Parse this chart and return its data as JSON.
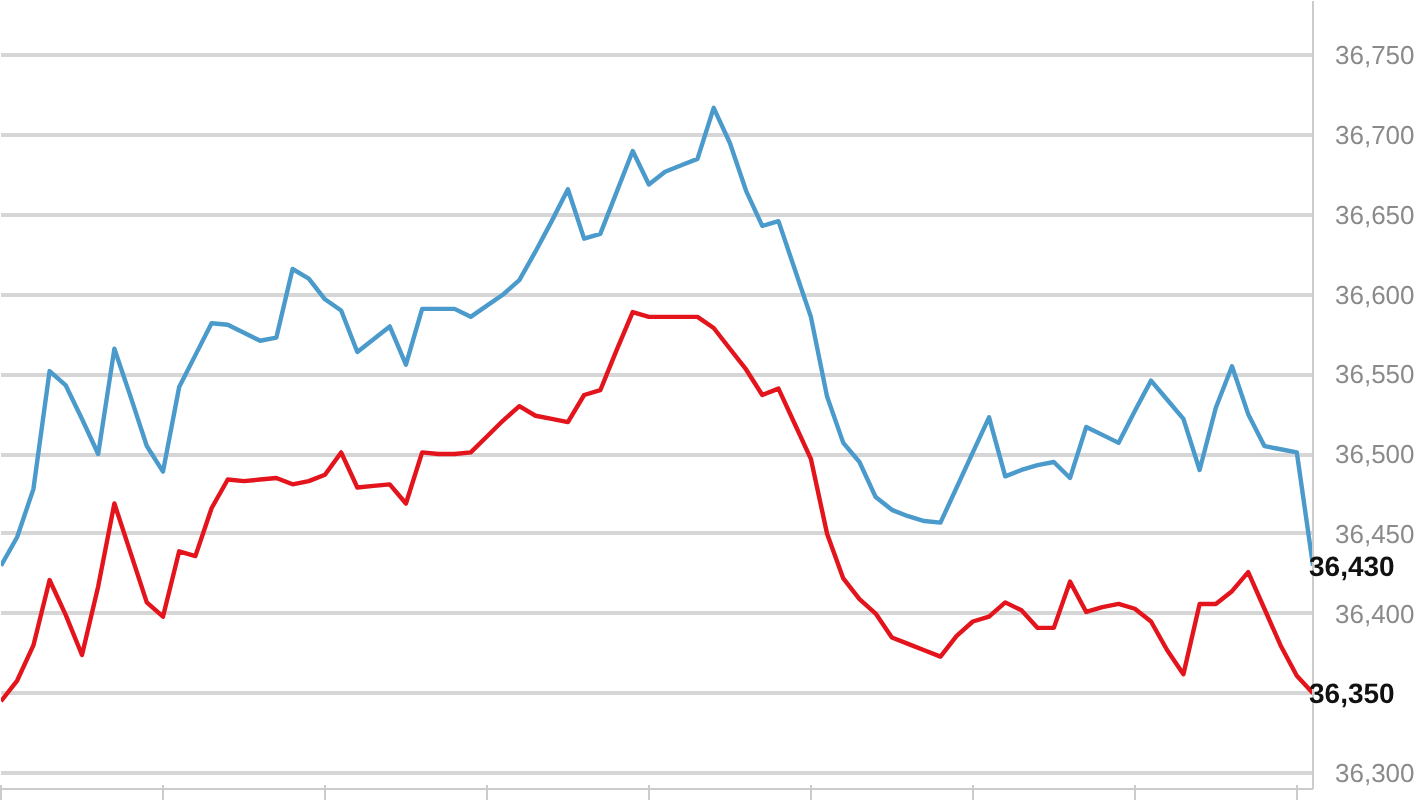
{
  "chart_data": {
    "type": "line",
    "categories": [
      null,
      null,
      null,
      null,
      null,
      null,
      null,
      null,
      null,
      null,
      null,
      null,
      null,
      null,
      null,
      null,
      null,
      null,
      null,
      null,
      null,
      null,
      null,
      null,
      null,
      null,
      null,
      null,
      null,
      null,
      null,
      null,
      null,
      null,
      null,
      null,
      null,
      null,
      null,
      null,
      null,
      null,
      null,
      null,
      null,
      null,
      null,
      null,
      null,
      null,
      null,
      null,
      null,
      null,
      null,
      null,
      null,
      null,
      null,
      null,
      null,
      null,
      null,
      null,
      null,
      null,
      null,
      null,
      null,
      null,
      null,
      null,
      null,
      null,
      null,
      null,
      null,
      null,
      null,
      null,
      null,
      null
    ],
    "series": [
      {
        "color": "#4a9acb",
        "values": [
          36430,
          36448,
          36478,
          36552,
          36543,
          36522,
          36500,
          36566,
          36536,
          36505,
          36489,
          36542,
          36562,
          36582,
          36581,
          36576,
          36571,
          36573,
          36616,
          36610,
          36597,
          36590,
          36564,
          36572,
          36580,
          36556,
          36591,
          36591,
          36591,
          36586,
          36593,
          36600,
          36609,
          36627,
          36646,
          36666,
          36635,
          36638,
          36664,
          36690,
          36669,
          36677,
          36681,
          36685,
          36717,
          36695,
          36665,
          36643,
          36646,
          36616,
          36586,
          36536,
          36507,
          36495,
          36473,
          36465,
          36461,
          36458,
          36457,
          36479,
          36501,
          36523,
          36486,
          36490,
          36493,
          36495,
          36485,
          36517,
          36512,
          36507,
          36527,
          36546,
          36534,
          36522,
          36490,
          36529,
          36555,
          36525,
          36505,
          36503,
          36501,
          36430
        ]
      },
      {
        "color": "#e3141c",
        "values": [
          36345,
          36358,
          36380,
          36421,
          36399,
          36374,
          36417,
          36469,
          36438,
          36407,
          36398,
          36439,
          36436,
          36466,
          36484,
          36483,
          36484,
          36485,
          36481,
          36483,
          36487,
          36501,
          36479,
          36480,
          36481,
          36469,
          36501,
          36500,
          36500,
          36501,
          36511,
          36521,
          36530,
          36524,
          36522,
          36520,
          36537,
          36540,
          36565,
          36589,
          36586,
          36586,
          36586,
          36586,
          36579,
          36566,
          36553,
          36537,
          36541,
          36519,
          36497,
          36450,
          36422,
          36409,
          36400,
          36385,
          36381,
          36377,
          36373,
          36386,
          36395,
          36398,
          36407,
          36402,
          36391,
          36391,
          36420,
          36401,
          36404,
          36406,
          36403,
          36395,
          36377,
          36362,
          36406,
          36406,
          36414,
          36426,
          36403,
          36380,
          36361,
          36350
        ]
      }
    ],
    "ylim": [
      36290,
      36784
    ],
    "yticks": [
      {
        "value": 36300,
        "label": "36,300"
      },
      {
        "value": 36350,
        "label": null
      },
      {
        "value": 36400,
        "label": "36,400"
      },
      {
        "value": 36450,
        "label": "36,450"
      },
      {
        "value": 36500,
        "label": "36,500"
      },
      {
        "value": 36550,
        "label": "36,550"
      },
      {
        "value": 36600,
        "label": "36,600"
      },
      {
        "value": 36650,
        "label": "36,650"
      },
      {
        "value": 36700,
        "label": "36,700"
      },
      {
        "value": 36750,
        "label": "36,750"
      }
    ],
    "annotations": [
      "36,430",
      "36,350"
    ],
    "grid": "y",
    "tick_labels": "y",
    "marker": "none",
    "line_style": "solid"
  }
}
